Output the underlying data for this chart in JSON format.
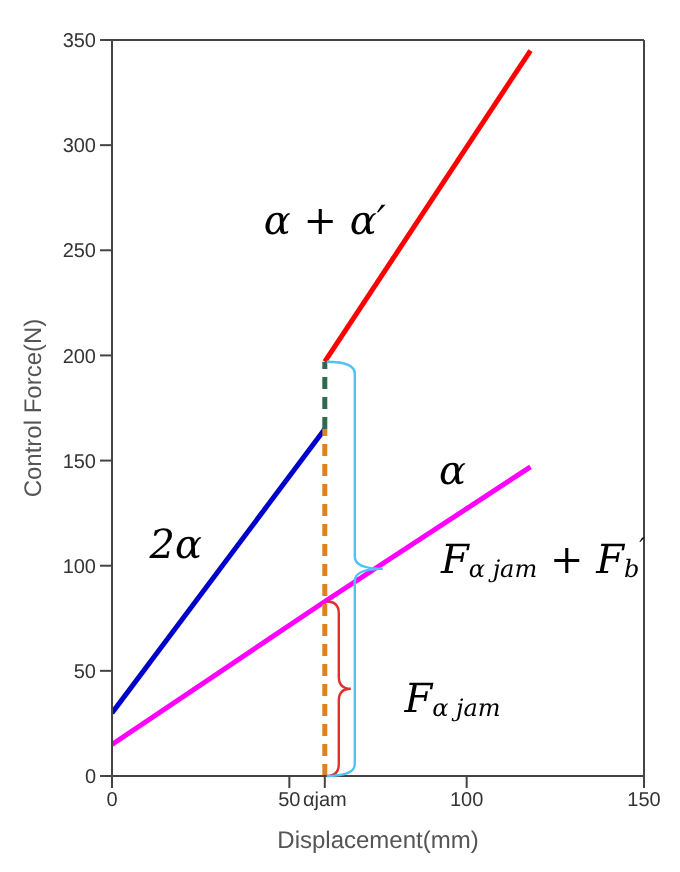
{
  "chart_data": {
    "type": "line",
    "xlabel": "Displacement(mm)",
    "ylabel": "Control Force(N)",
    "xlim": [
      0,
      150
    ],
    "xticks": [
      0,
      50,
      {
        "value": 60,
        "label": "αjam"
      },
      100,
      150
    ],
    "ylim": [
      0,
      350
    ],
    "yticks": [
      0,
      50,
      100,
      150,
      200,
      250,
      300,
      350
    ],
    "marker": "none",
    "series": [
      {
        "color": "#0000cc",
        "x": [
          0,
          60
        ],
        "values": [
          30,
          165
        ],
        "line_style": "solid"
      },
      {
        "color": "#ff00ff",
        "x": [
          0,
          60,
          118
        ],
        "values": [
          15,
          83,
          147
        ],
        "line_style": "solid"
      },
      {
        "color": "#ff0000",
        "x": [
          60,
          118
        ],
        "values": [
          197,
          345
        ],
        "line_style": "solid"
      },
      {
        "color": "#e08020",
        "x": [
          60,
          60
        ],
        "values": [
          0,
          165
        ],
        "line_style": "dashed"
      },
      {
        "color": "#2e6b4e",
        "x": [
          60,
          60
        ],
        "values": [
          165,
          197
        ],
        "line_style": "dashed"
      }
    ],
    "annotations": [
      "α + α′",
      "2α",
      "α",
      "F$_{α jam}$ + F$_{b}$$^{′}$",
      "F$_{α jam}$"
    ]
  }
}
